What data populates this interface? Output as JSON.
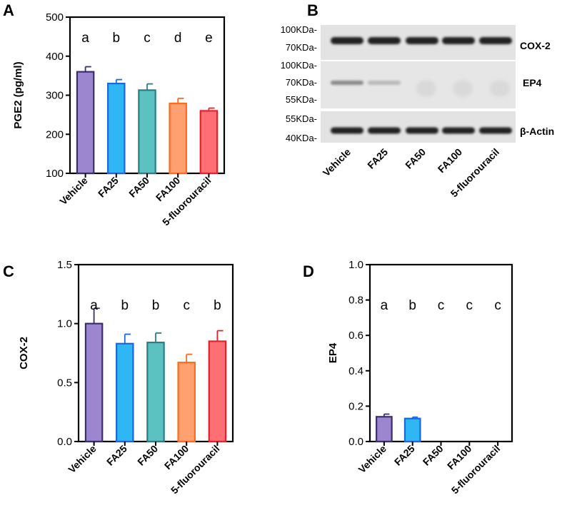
{
  "panels": {
    "A": "A",
    "B": "B",
    "C": "C",
    "D": "D"
  },
  "chart_data": [
    {
      "panel": "A",
      "type": "bar",
      "ylabel": "PGE2 (pg/ml)",
      "xlabel": "",
      "title": "",
      "categories": [
        "Vehicle",
        "FA25",
        "FA50",
        "FA100",
        "5-fluorouracil"
      ],
      "values": [
        360,
        330,
        313,
        279,
        260
      ],
      "errors": [
        13,
        10,
        16,
        13,
        7
      ],
      "significance": [
        "a",
        "b",
        "c",
        "d",
        "e"
      ],
      "ylim": [
        100,
        500
      ],
      "yticks": [
        100,
        200,
        300,
        400,
        500
      ],
      "ytick_labels": [
        "100",
        "200",
        "300",
        "400",
        "500"
      ],
      "fill_colors": [
        "#9b86cf",
        "#2eb6f5",
        "#5cc1c1",
        "#ffa070",
        "#ff6f74"
      ],
      "stroke_colors": [
        "#3b2e6e",
        "#1f66d6",
        "#2a7f84",
        "#ff6a1a",
        "#e8202a"
      ]
    },
    {
      "panel": "C",
      "type": "bar",
      "ylabel": "COX-2",
      "xlabel": "",
      "title": "",
      "categories": [
        "Vehicle",
        "FA25",
        "FA50",
        "FA100",
        "5-fluorouracil"
      ],
      "values": [
        1.0,
        0.83,
        0.84,
        0.67,
        0.85
      ],
      "errors": [
        0.13,
        0.08,
        0.08,
        0.07,
        0.09
      ],
      "significance": [
        "a",
        "b",
        "b",
        "c",
        "b"
      ],
      "ylim": [
        0,
        1.5
      ],
      "yticks": [
        0,
        0.5,
        1.0,
        1.5
      ],
      "ytick_labels": [
        "0.0",
        "0.5",
        "1.0",
        "1.5"
      ],
      "fill_colors": [
        "#9b86cf",
        "#2eb6f5",
        "#5cc1c1",
        "#ffa070",
        "#ff6f74"
      ],
      "stroke_colors": [
        "#3b2e6e",
        "#1f66d6",
        "#2a7f84",
        "#ff6a1a",
        "#e8202a"
      ]
    },
    {
      "panel": "D",
      "type": "bar",
      "ylabel": "EP4",
      "xlabel": "",
      "title": "",
      "categories": [
        "Vehicle",
        "FA25",
        "FA50",
        "FA100",
        "5-fluorouracil"
      ],
      "values": [
        0.14,
        0.13,
        0,
        0,
        0
      ],
      "errors": [
        0.015,
        0.008,
        0,
        0,
        0
      ],
      "significance": [
        "a",
        "b",
        "c",
        "c",
        "c"
      ],
      "ylim": [
        0,
        1.0
      ],
      "yticks": [
        0,
        0.2,
        0.4,
        0.6,
        0.8,
        1.0
      ],
      "ytick_labels": [
        "0.0",
        "0.2",
        "0.4",
        "0.6",
        "0.8",
        "1.0"
      ],
      "fill_colors": [
        "#9b86cf",
        "#2eb6f5",
        "#5cc1c1",
        "#ffa070",
        "#ff6f74"
      ],
      "stroke_colors": [
        "#3b2e6e",
        "#1f66d6",
        "#2a7f84",
        "#ff6a1a",
        "#e8202a"
      ]
    }
  ],
  "blot": {
    "lanes": [
      "Vehicle",
      "FA25",
      "FA50",
      "FA100",
      "5-fluorouracil"
    ],
    "strips": [
      {
        "protein": "COX-2",
        "markers": [
          "100KDa-",
          "70KDa-"
        ],
        "band_intensity": [
          0.95,
          0.95,
          0.95,
          0.95,
          0.95
        ]
      },
      {
        "protein": "EP4",
        "markers": [
          "100KDa-",
          "70KDa-",
          "55KDa-"
        ],
        "band_intensity": [
          0.5,
          0.3,
          0.0,
          0.0,
          0.0
        ]
      },
      {
        "protein": "β-Actin",
        "markers": [
          "55KDa-",
          "40KDa-"
        ],
        "band_intensity": [
          0.95,
          0.95,
          0.95,
          0.95,
          0.95
        ]
      }
    ]
  }
}
